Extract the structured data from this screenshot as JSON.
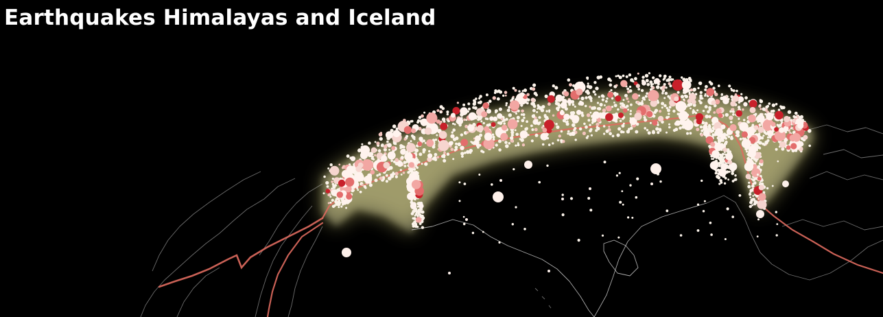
{
  "title": "Earthquakes Himalayas and Iceland",
  "colors": {
    "background": "#000000",
    "title": "#ffffff",
    "coastline": "#c9c9c9",
    "plate_boundary": "#e06b5f",
    "glow": "#d9d27a",
    "quake_low": "#fff3ee",
    "quake_mid": "#f2a7a3",
    "quake_high": "#c8202a"
  }
}
